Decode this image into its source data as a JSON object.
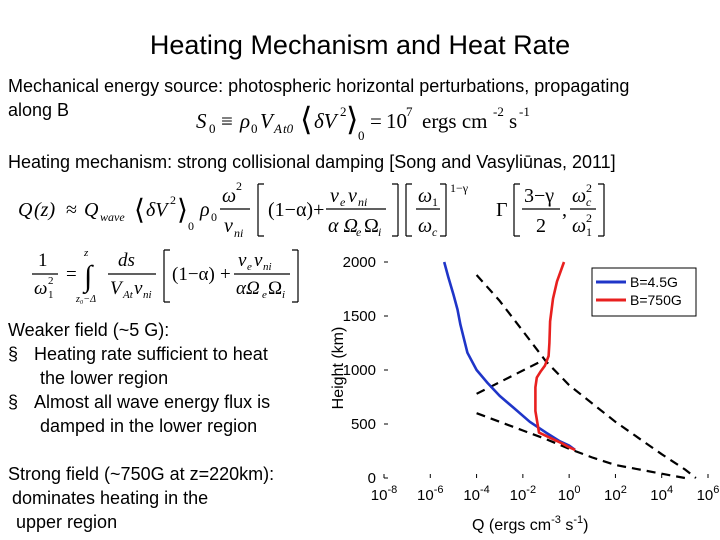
{
  "slide": {
    "title": "Heating Mechanism and Heat Rate",
    "energy_source_line1": "Mechanical energy source: photospheric horizontal perturbations, propagating",
    "energy_source_line2": "along B",
    "heating_mechanism": "Heating mechanism: strong collisional damping [Song and Vasyliūnas, 2011]",
    "weak_field": {
      "heading": "Weaker field (~5 G):",
      "bullet_marker": "§",
      "bullet1_line1": "Heating rate sufficient to heat",
      "bullet1_line2": "the lower region",
      "bullet2_line1": "Almost all wave energy flux is",
      "bullet2_line2": "damped in the lower region"
    },
    "strong_field": {
      "line1": "Strong field (~750G at z=220km):",
      "line2": "dominates heating in the",
      "line3": "upper region"
    }
  },
  "equations": {
    "s0": {
      "lhs": "S",
      "sub0": "0",
      "equiv": "≡",
      "rho": "ρ",
      "v": "V",
      "sub_a": "A",
      "sub_t0": "t0",
      "delta_v": "δV",
      "sup2": "2",
      "sub_avg0": "0",
      "equals": "=",
      "ten": "10",
      "exp7": "7",
      "units_ergs": "ergs cm",
      "exp_m2": "-2",
      "units_s": "s",
      "exp_m1": "-1"
    },
    "q": {
      "lhs": "Q",
      "z": "(z)",
      "approx": "≈",
      "qwave": "Q",
      "sub_wave": "wave",
      "omega": "ω",
      "nu_e": "ν",
      "Omega": "Ω",
      "alpha": "α",
      "gamma": "Γ",
      "one_minus_gamma": "1−γ",
      "three_minus_gamma": "3−γ",
      "two": "2",
      "one": "1"
    },
    "w": {
      "one": "1",
      "omega": "ω",
      "sup2": "2",
      "sub1": "1",
      "upper": "z",
      "lower": "z₀−Δ",
      "ds": "ds",
      "v": "V",
      "sub_a": "A",
      "sub_t": "t",
      "nu": "ν",
      "sub_ni": "ni",
      "one_minus_alpha": "(1−α)",
      "plus": "+",
      "alpha_omega": "αΩ",
      "sub_e": "e",
      "sub_i": "i"
    }
  },
  "chart_data": {
    "type": "line",
    "xlabel": "Q (ergs cm",
    "xlabel_exp1": "-3",
    "xlabel_mid": " s",
    "xlabel_exp2": "-1",
    "xlabel_end": ")",
    "ylabel": "Height (km)",
    "x_scale": "log",
    "xlim": [
      1e-08,
      1000000.0
    ],
    "ylim": [
      0,
      2000
    ],
    "x_ticks": [
      {
        "base": "10",
        "exp": "-8"
      },
      {
        "base": "10",
        "exp": "-6"
      },
      {
        "base": "10",
        "exp": "-4"
      },
      {
        "base": "10",
        "exp": "-2"
      },
      {
        "base": "10",
        "exp": "0"
      },
      {
        "base": "10",
        "exp": "2"
      },
      {
        "base": "10",
        "exp": "4"
      },
      {
        "base": "10",
        "exp": "6"
      }
    ],
    "y_ticks": [
      "0",
      "500",
      "1000",
      "1500",
      "2000"
    ],
    "legend_position": "top-right",
    "series": [
      {
        "name": "B=4.5G",
        "color": "#1f35c8",
        "x": [
          4e-06,
          6e-06,
          1e-05,
          1.5e-05,
          2e-05,
          4e-05,
          0.0001,
          0.0003,
          0.001,
          0.004,
          0.02,
          0.1,
          0.4,
          1,
          1.8
        ],
        "y": [
          2000,
          1860,
          1700,
          1560,
          1420,
          1160,
          1000,
          880,
          760,
          650,
          520,
          420,
          340,
          300,
          260
        ]
      },
      {
        "name": "B=750G",
        "color": "#e8201f",
        "x": [
          0.6,
          0.3,
          0.2,
          0.15,
          0.14,
          0.13,
          0.09,
          0.06,
          0.04,
          0.035,
          0.035,
          0.05,
          0.25,
          0.5,
          0.9,
          1.8
        ],
        "y": [
          2000,
          1820,
          1660,
          1450,
          1250,
          1130,
          1040,
          990,
          930,
          840,
          620,
          420,
          350,
          320,
          290,
          260
        ]
      },
      {
        "name": "",
        "color": "#000000",
        "dashed": true,
        "x": [
          0.0001,
          0.001,
          0.01,
          0.1,
          1,
          100.0,
          10000.0,
          100000.0,
          300000.0
        ],
        "y": [
          1880,
          1640,
          1360,
          1080,
          860,
          520,
          220,
          80,
          0
        ]
      },
      {
        "name": "",
        "color": "#000000",
        "dashed": true,
        "x": [
          0.0001,
          0.06
        ],
        "y": [
          780,
          1080
        ]
      },
      {
        "name": "",
        "color": "#000000",
        "dashed": true,
        "x": [
          0.0001,
          0.001,
          0.01,
          0.1,
          1,
          10,
          100.0,
          10000.0,
          100000.0
        ],
        "y": [
          600,
          520,
          440,
          360,
          270,
          190,
          120,
          40,
          0
        ]
      }
    ]
  }
}
